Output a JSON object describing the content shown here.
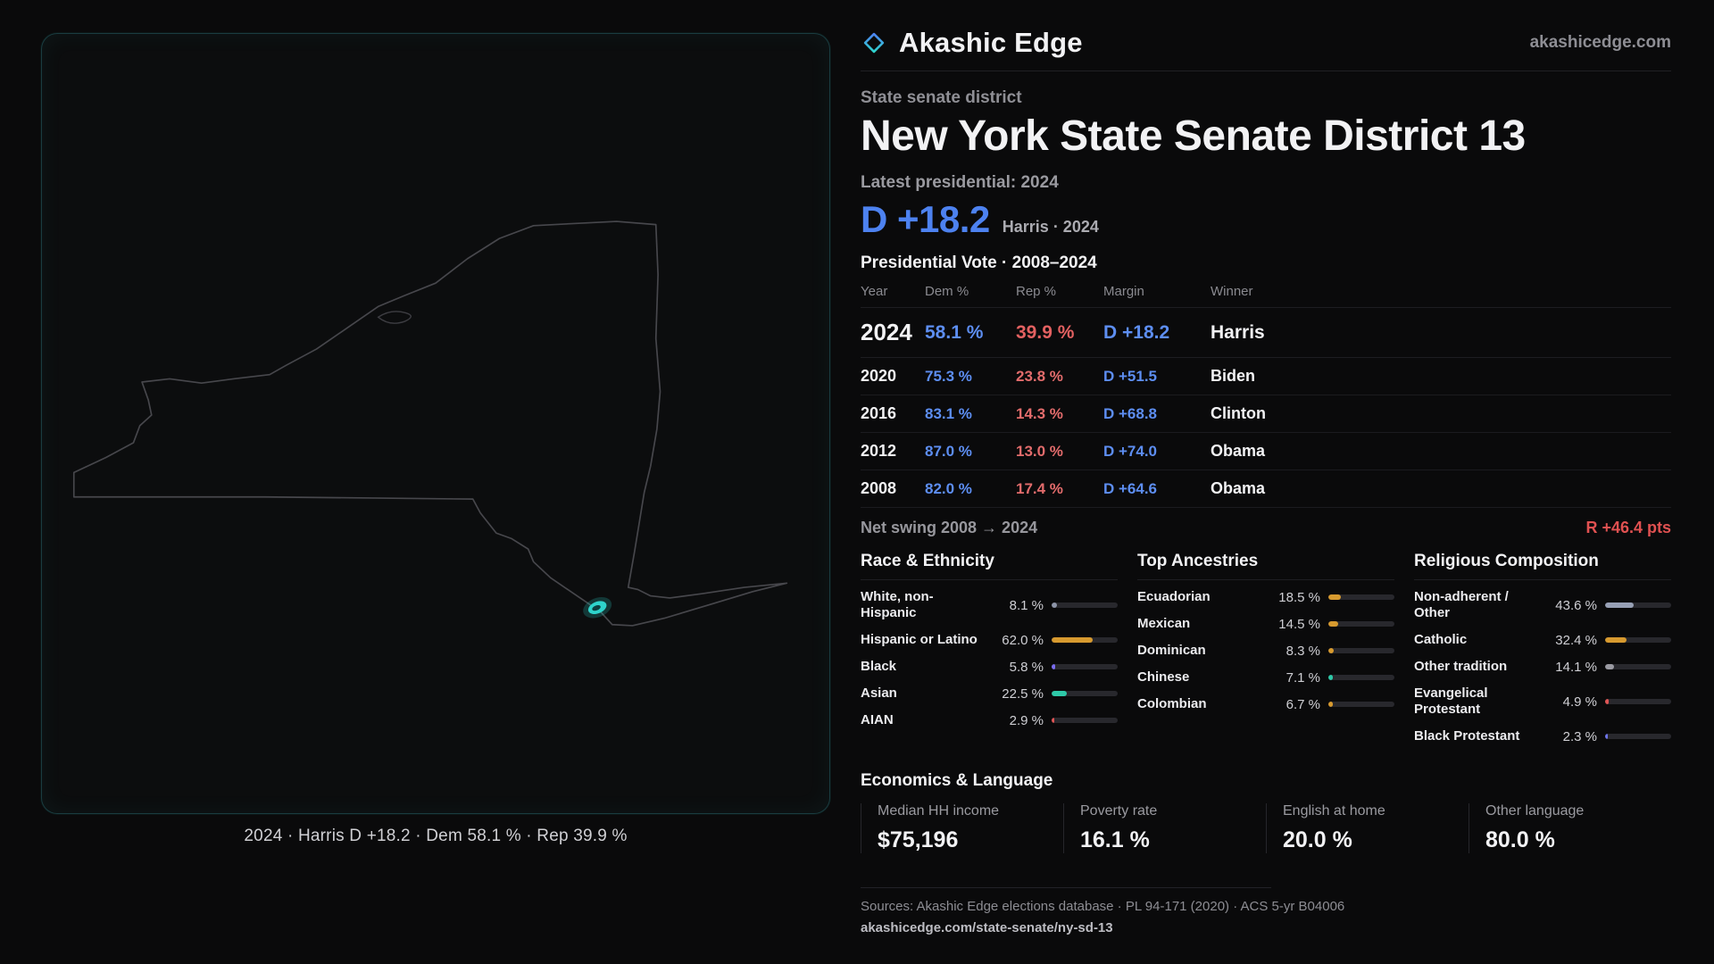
{
  "brand": {
    "name": "Akashic Edge",
    "site": "akashicedge.com"
  },
  "map": {
    "caption": "2024 · Harris D +18.2 · Dem 58.1 % · Rep 39.9 %",
    "region": "New York state outline",
    "highlight": "State Senate District 13",
    "highlight_color": "#2ed3cb",
    "outline_color": "#47474c"
  },
  "header": {
    "kicker": "State senate district",
    "title": "New York State Senate District 13",
    "latest_label": "Latest presidential: 2024",
    "headline_margin": "D +18.2",
    "headline_detail": "Harris · 2024",
    "dem_color": "#4d82f0",
    "rep_color": "#e36161"
  },
  "vote_table": {
    "title": "Presidential Vote · 2008–2024",
    "columns": [
      "Year",
      "Dem %",
      "Rep %",
      "Margin",
      "Winner"
    ],
    "rows": [
      {
        "year": "2024",
        "dem": "58.1 %",
        "rep": "39.9 %",
        "margin": "D +18.2",
        "winner": "Harris"
      },
      {
        "year": "2020",
        "dem": "75.3 %",
        "rep": "23.8 %",
        "margin": "D +51.5",
        "winner": "Biden"
      },
      {
        "year": "2016",
        "dem": "83.1 %",
        "rep": "14.3 %",
        "margin": "D +68.8",
        "winner": "Clinton"
      },
      {
        "year": "2012",
        "dem": "87.0 %",
        "rep": "13.0 %",
        "margin": "D +74.0",
        "winner": "Obama"
      },
      {
        "year": "2008",
        "dem": "82.0 %",
        "rep": "17.4 %",
        "margin": "D +64.6",
        "winner": "Obama"
      }
    ]
  },
  "swing": {
    "label": "Net swing 2008 → 2024",
    "value": "R +46.4 pts",
    "value_color": "#e05151"
  },
  "chart_data": [
    {
      "type": "bar",
      "title": "Race & Ethnicity",
      "categories": [
        "White, non-Hispanic",
        "Hispanic or Latino",
        "Black",
        "Asian",
        "AIAN"
      ],
      "values": [
        8.1,
        62.0,
        5.8,
        22.5,
        2.9
      ],
      "ylim": [
        0,
        100
      ]
    },
    {
      "type": "bar",
      "title": "Top Ancestries",
      "categories": [
        "Ecuadorian",
        "Mexican",
        "Dominican",
        "Chinese",
        "Colombian"
      ],
      "values": [
        18.5,
        14.5,
        8.3,
        7.1,
        6.7
      ],
      "ylim": [
        0,
        100
      ]
    },
    {
      "type": "bar",
      "title": "Religious Composition",
      "categories": [
        "Non-adherent / Other",
        "Catholic",
        "Other tradition",
        "Evangelical Protestant",
        "Black Protestant"
      ],
      "values": [
        43.6,
        32.4,
        14.1,
        4.9,
        2.3
      ],
      "ylim": [
        0,
        100
      ]
    }
  ],
  "demographics": {
    "race": {
      "title": "Race & Ethnicity",
      "items": [
        {
          "label": "White, non-Hispanic",
          "value": "8.1 %",
          "pct": 8.1,
          "color": "#8d95a8"
        },
        {
          "label": "Hispanic or Latino",
          "value": "62.0 %",
          "pct": 62.0,
          "color": "#d79a2f"
        },
        {
          "label": "Black",
          "value": "5.8 %",
          "pct": 5.8,
          "color": "#7a6cf0"
        },
        {
          "label": "Asian",
          "value": "22.5 %",
          "pct": 22.5,
          "color": "#2ec9a8"
        },
        {
          "label": "AIAN",
          "value": "2.9 %",
          "pct": 2.9,
          "color": "#e05555"
        }
      ]
    },
    "ancestries": {
      "title": "Top Ancestries",
      "items": [
        {
          "label": "Ecuadorian",
          "value": "18.5 %",
          "pct": 18.5,
          "color": "#d79a2f"
        },
        {
          "label": "Mexican",
          "value": "14.5 %",
          "pct": 14.5,
          "color": "#d79a2f"
        },
        {
          "label": "Dominican",
          "value": "8.3 %",
          "pct": 8.3,
          "color": "#d79a2f"
        },
        {
          "label": "Chinese",
          "value": "7.1 %",
          "pct": 7.1,
          "color": "#2ec9a8"
        },
        {
          "label": "Colombian",
          "value": "6.7 %",
          "pct": 6.7,
          "color": "#d79a2f"
        }
      ]
    },
    "religion": {
      "title": "Religious Composition",
      "items": [
        {
          "label": "Non-adherent / Other",
          "value": "43.6 %",
          "pct": 43.6,
          "color": "#97a0b5"
        },
        {
          "label": "Catholic",
          "value": "32.4 %",
          "pct": 32.4,
          "color": "#d79a2f"
        },
        {
          "label": "Other tradition",
          "value": "14.1 %",
          "pct": 14.1,
          "color": "#9a9aa2"
        },
        {
          "label": "Evangelical Protestant",
          "value": "4.9 %",
          "pct": 4.9,
          "color": "#e05555"
        },
        {
          "label": "Black Protestant",
          "value": "2.3 %",
          "pct": 2.3,
          "color": "#6d74e8"
        }
      ]
    }
  },
  "economics": {
    "title": "Economics & Language",
    "stats": [
      {
        "label": "Median HH income",
        "value": "$75,196"
      },
      {
        "label": "Poverty rate",
        "value": "16.1 %"
      },
      {
        "label": "English at home",
        "value": "20.0 %"
      },
      {
        "label": "Other language",
        "value": "80.0 %"
      }
    ]
  },
  "footer": {
    "sources": "Sources: Akashic Edge elections database · PL 94-171 (2020) · ACS 5-yr B04006",
    "permalink": "akashicedge.com/state-senate/ny-sd-13"
  }
}
